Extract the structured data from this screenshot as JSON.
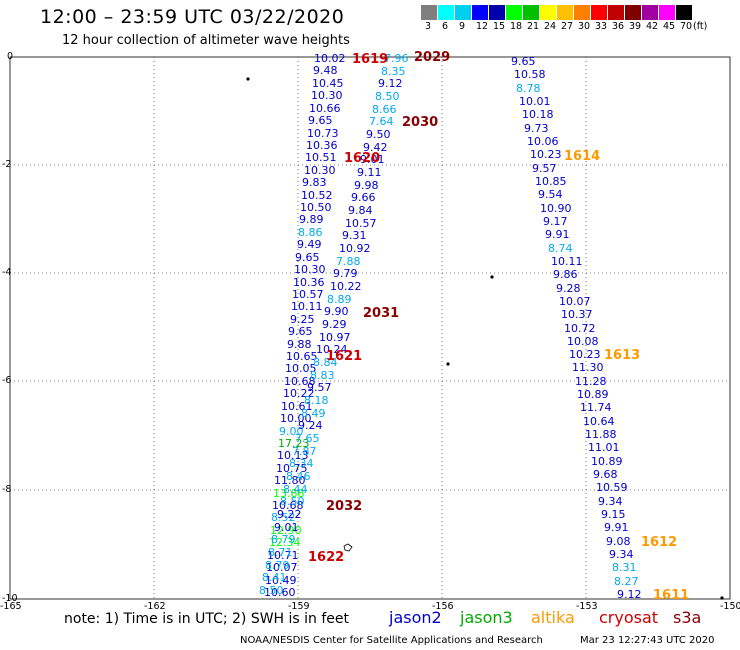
{
  "header": {
    "title": "12:00 – 23:59 UTC 03/22/2020",
    "subtitle": "12 hour collection of altimeter wave heights"
  },
  "legend": {
    "colors": [
      "#7f7f7f",
      "#00ffff",
      "#00d0f0",
      "#0000ff",
      "#0000aa",
      "#00ff00",
      "#00c000",
      "#ffff00",
      "#ffc000",
      "#ff8000",
      "#ff0000",
      "#c00000",
      "#800000",
      "#a000a0",
      "#ff00ff",
      "#000000"
    ],
    "labels": [
      "3",
      "6",
      "9",
      "12",
      "15",
      "18",
      "21",
      "24",
      "27",
      "30",
      "33",
      "36",
      "39",
      "42",
      "45",
      "70"
    ],
    "unit": "(ft)"
  },
  "axes": {
    "y_ticks": [
      "0",
      "-2",
      "-4",
      "-6",
      "-8",
      "-10"
    ],
    "x_ticks": [
      "-165",
      "-162",
      "-159",
      "-156",
      "-153",
      "-150"
    ]
  },
  "colors": {
    "jason2": "#0000cc",
    "jason3": "#00aa00",
    "altika": "#ff9900",
    "cryosat": "#cc0000",
    "s3a": "#880000",
    "cyan_label": "#00aacc",
    "light_blue": "#00aaee"
  },
  "track_a": [
    {
      "v": "10.02",
      "c": "#0000cc"
    },
    {
      "v": "9.48",
      "c": "#0000cc"
    },
    {
      "v": "10.45",
      "c": "#0000cc"
    },
    {
      "v": "10.30",
      "c": "#0000cc"
    },
    {
      "v": "10.66",
      "c": "#0000cc"
    },
    {
      "v": "9.65",
      "c": "#0000cc"
    },
    {
      "v": "10.73",
      "c": "#0000cc"
    },
    {
      "v": "10.36",
      "c": "#0000cc"
    },
    {
      "v": "10.51",
      "c": "#0000cc"
    },
    {
      "v": "10.30",
      "c": "#0000cc"
    },
    {
      "v": "9.83",
      "c": "#0000cc"
    },
    {
      "v": "10.52",
      "c": "#0000cc"
    },
    {
      "v": "10.50",
      "c": "#0000cc"
    },
    {
      "v": "9.89",
      "c": "#0000cc"
    },
    {
      "v": "8.86",
      "c": "#00aaee"
    },
    {
      "v": "9.49",
      "c": "#0000cc"
    },
    {
      "v": "9.65",
      "c": "#0000cc"
    },
    {
      "v": "10.30",
      "c": "#0000cc"
    },
    {
      "v": "10.36",
      "c": "#0000cc"
    },
    {
      "v": "10.57",
      "c": "#0000cc"
    },
    {
      "v": "10.11",
      "c": "#0000cc"
    },
    {
      "v": "9.25",
      "c": "#0000cc"
    },
    {
      "v": "9.65",
      "c": "#0000cc"
    },
    {
      "v": "9.88",
      "c": "#0000cc"
    },
    {
      "v": "10.65",
      "c": "#0000cc"
    },
    {
      "v": "10.05",
      "c": "#0000cc"
    },
    {
      "v": "10.68",
      "c": "#0000cc"
    },
    {
      "v": "10.22",
      "c": "#0000cc"
    },
    {
      "v": "10.61",
      "c": "#0000cc"
    },
    {
      "v": "10.00",
      "c": "#0000cc"
    },
    {
      "v": "9.00",
      "c": "#00aaee"
    },
    {
      "v": "17.23",
      "c": "#00aa00"
    },
    {
      "v": "10.13",
      "c": "#0000cc"
    },
    {
      "v": "10.75",
      "c": "#0000cc"
    },
    {
      "v": "11.80",
      "c": "#0000cc"
    },
    {
      "v": "13.88",
      "c": "#00ff00"
    },
    {
      "v": "10.68",
      "c": "#0000cc"
    },
    {
      "v": "8.52",
      "c": "#00aaee"
    },
    {
      "v": "12.90",
      "c": "#00ff00"
    },
    {
      "v": "12.34",
      "c": "#00ff00"
    },
    {
      "v": "10.71",
      "c": "#0000cc"
    },
    {
      "v": "10.07",
      "c": "#0000cc"
    },
    {
      "v": "10.49",
      "c": "#0000cc"
    },
    {
      "v": "10.60",
      "c": "#0000cc"
    }
  ],
  "track_b": [
    {
      "v": "7.96",
      "c": "#00aaee"
    },
    {
      "v": "8.35",
      "c": "#00aaee"
    },
    {
      "v": "9.12",
      "c": "#0000cc"
    },
    {
      "v": "8.50",
      "c": "#00aaee"
    },
    {
      "v": "8.66",
      "c": "#00aaee"
    },
    {
      "v": "7.64",
      "c": "#00aaee"
    },
    {
      "v": "9.50",
      "c": "#0000cc"
    },
    {
      "v": "9.42",
      "c": "#0000cc"
    },
    {
      "v": "9.01",
      "c": "#0000cc"
    },
    {
      "v": "9.11",
      "c": "#0000cc"
    },
    {
      "v": "9.98",
      "c": "#0000cc"
    },
    {
      "v": "9.66",
      "c": "#0000cc"
    },
    {
      "v": "9.84",
      "c": "#0000cc"
    },
    {
      "v": "10.57",
      "c": "#0000cc"
    },
    {
      "v": "9.31",
      "c": "#0000cc"
    },
    {
      "v": "10.92",
      "c": "#0000cc"
    },
    {
      "v": "7.88",
      "c": "#00aaee"
    },
    {
      "v": "9.79",
      "c": "#0000cc"
    },
    {
      "v": "10.22",
      "c": "#0000cc"
    },
    {
      "v": "8.89",
      "c": "#00aaee"
    },
    {
      "v": "9.90",
      "c": "#0000cc"
    },
    {
      "v": "9.29",
      "c": "#0000cc"
    },
    {
      "v": "10.97",
      "c": "#0000cc"
    },
    {
      "v": "10.24",
      "c": "#0000cc"
    },
    {
      "v": "8.84",
      "c": "#00aaee"
    },
    {
      "v": "8.83",
      "c": "#00aaee"
    },
    {
      "v": "9.57",
      "c": "#0000cc"
    },
    {
      "v": "8.18",
      "c": "#00aaee"
    },
    {
      "v": "8.49",
      "c": "#00aaee"
    },
    {
      "v": "9.24",
      "c": "#0000cc"
    },
    {
      "v": "7.65",
      "c": "#00aaee"
    },
    {
      "v": "7.87",
      "c": "#00aaee"
    },
    {
      "v": "8.34",
      "c": "#00aaee"
    },
    {
      "v": "8.46",
      "c": "#00aaee"
    },
    {
      "v": "8.44",
      "c": "#00aaee"
    },
    {
      "v": "8.50",
      "c": "#00aaee"
    },
    {
      "v": "9.22",
      "c": "#0000cc"
    },
    {
      "v": "9.01",
      "c": "#0000cc"
    },
    {
      "v": "8.79",
      "c": "#00aaee"
    },
    {
      "v": "8.71",
      "c": "#00aaee"
    },
    {
      "v": "8.79",
      "c": "#00aaee"
    },
    {
      "v": "8.41",
      "c": "#00aaee"
    },
    {
      "v": "8.50",
      "c": "#00aaee"
    }
  ],
  "track_c": [
    {
      "v": "9.65",
      "c": "#0000cc"
    },
    {
      "v": "10.58",
      "c": "#0000cc"
    },
    {
      "v": "8.78",
      "c": "#00aaee"
    },
    {
      "v": "10.01",
      "c": "#0000cc"
    },
    {
      "v": "10.18",
      "c": "#0000cc"
    },
    {
      "v": "9.73",
      "c": "#0000cc"
    },
    {
      "v": "10.06",
      "c": "#0000cc"
    },
    {
      "v": "10.23",
      "c": "#0000cc"
    },
    {
      "v": "9.57",
      "c": "#0000cc"
    },
    {
      "v": "10.85",
      "c": "#0000cc"
    },
    {
      "v": "9.54",
      "c": "#0000cc"
    },
    {
      "v": "10.90",
      "c": "#0000cc"
    },
    {
      "v": "9.17",
      "c": "#0000cc"
    },
    {
      "v": "9.91",
      "c": "#0000cc"
    },
    {
      "v": "8.74",
      "c": "#00aaee"
    },
    {
      "v": "10.11",
      "c": "#0000cc"
    },
    {
      "v": "9.86",
      "c": "#0000cc"
    },
    {
      "v": "9.28",
      "c": "#0000cc"
    },
    {
      "v": "10.07",
      "c": "#0000cc"
    },
    {
      "v": "10.37",
      "c": "#0000cc"
    },
    {
      "v": "10.72",
      "c": "#0000cc"
    },
    {
      "v": "10.08",
      "c": "#0000cc"
    },
    {
      "v": "10.23",
      "c": "#0000cc"
    },
    {
      "v": "11.30",
      "c": "#0000cc"
    },
    {
      "v": "11.28",
      "c": "#0000cc"
    },
    {
      "v": "10.89",
      "c": "#0000cc"
    },
    {
      "v": "11.74",
      "c": "#0000cc"
    },
    {
      "v": "10.64",
      "c": "#0000cc"
    },
    {
      "v": "11.88",
      "c": "#0000cc"
    },
    {
      "v": "11.01",
      "c": "#0000cc"
    },
    {
      "v": "10.89",
      "c": "#0000cc"
    },
    {
      "v": "9.68",
      "c": "#0000cc"
    },
    {
      "v": "10.59",
      "c": "#0000cc"
    },
    {
      "v": "9.34",
      "c": "#0000cc"
    },
    {
      "v": "9.15",
      "c": "#0000cc"
    },
    {
      "v": "9.91",
      "c": "#0000cc"
    },
    {
      "v": "9.08",
      "c": "#0000cc"
    },
    {
      "v": "9.34",
      "c": "#0000cc"
    },
    {
      "v": "8.31",
      "c": "#00aaee"
    },
    {
      "v": "8.27",
      "c": "#00aaee"
    },
    {
      "v": "9.12",
      "c": "#0000cc"
    }
  ],
  "pass_labels": [
    {
      "t": "1619",
      "c": "#cc0000"
    },
    {
      "t": "2029",
      "c": "#880000"
    },
    {
      "t": "2030",
      "c": "#880000"
    },
    {
      "t": "1620",
      "c": "#cc0000"
    },
    {
      "t": "1614",
      "c": "#ff9900"
    },
    {
      "t": "2031",
      "c": "#880000"
    },
    {
      "t": "1621",
      "c": "#cc0000"
    },
    {
      "t": "1613",
      "c": "#ff9900"
    },
    {
      "t": "2032",
      "c": "#880000"
    },
    {
      "t": "1622",
      "c": "#cc0000"
    },
    {
      "t": "1612",
      "c": "#ff9900"
    },
    {
      "t": "1611",
      "c": "#ff9900"
    }
  ],
  "footer": {
    "note": "note:  1) Time is in UTC;  2) SWH is in feet",
    "satellites": [
      "jason2",
      "jason3",
      "altika",
      "cryosat",
      "s3a"
    ],
    "credit": "NOAA/NESDIS Center for Satellite Applications and Research",
    "timestamp": "Mar 23 12:27:43 UTC 2020"
  }
}
